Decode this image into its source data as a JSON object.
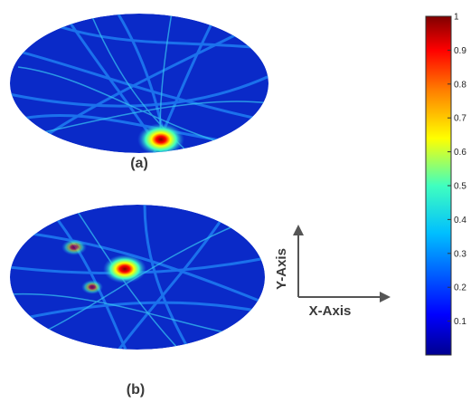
{
  "panels": [
    {
      "id": "a",
      "label": "(a)"
    },
    {
      "id": "b",
      "label": "(b)"
    }
  ],
  "axes": {
    "x_label": "X-Axis",
    "y_label": "Y-Axis"
  },
  "colorbar": {
    "min": 0,
    "max": 1,
    "tick_labels": [
      "1",
      "0.9",
      "0.8",
      "0.7",
      "0.6",
      "0.5",
      "0.4",
      "0.3",
      "0.2",
      "0.1"
    ],
    "colormap": [
      "#00008f",
      "#0000ff",
      "#00bfff",
      "#40ffbf",
      "#ffff00",
      "#ff8000",
      "#ff0000",
      "#800000"
    ]
  },
  "colors": {
    "background": "#00189a",
    "hotspot": "#c00000",
    "line": "#1f7ef2"
  }
}
